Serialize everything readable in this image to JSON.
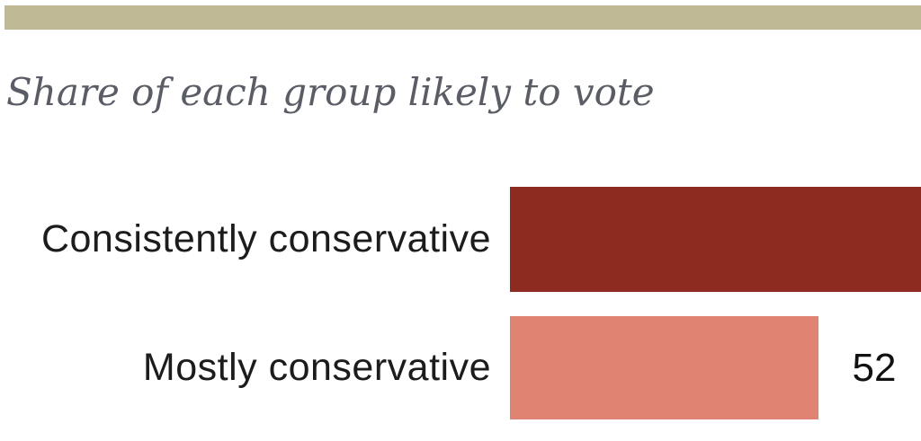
{
  "page": {
    "background_color": "#ffffff"
  },
  "header_strip": {
    "color": "#BFB996"
  },
  "title": {
    "text": "Share of each group likely to vote",
    "color": "#5A5D66"
  },
  "chart_data": {
    "type": "bar",
    "orientation": "horizontal",
    "title": "Share of each group likely to vote",
    "categories": [
      "Consistently conservative",
      "Mostly conservative"
    ],
    "values": [
      null,
      52
    ],
    "value_labels": [
      "",
      "52"
    ],
    "series_colors": [
      "#8E2B20",
      "#E08372"
    ],
    "clipped_at_right_edge": [
      true,
      false
    ],
    "label_color": "#1C1C1C",
    "value_color": "#111111",
    "grid": false,
    "legend": false,
    "axes_visible": false
  }
}
